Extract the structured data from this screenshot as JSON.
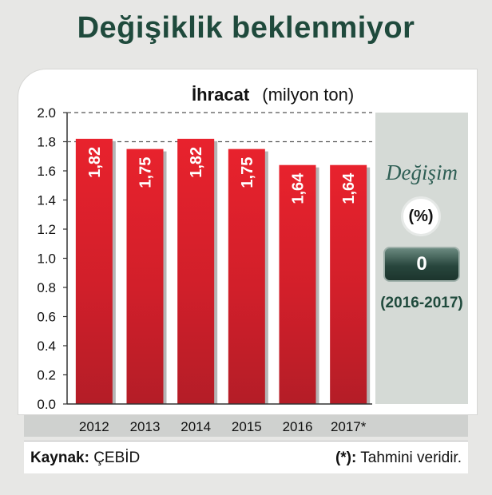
{
  "header": {
    "title": "Değişiklik beklenmiyor"
  },
  "chart_data": {
    "type": "bar",
    "title": "İhracat",
    "unit": "(milyon ton)",
    "categories": [
      "2012",
      "2013",
      "2014",
      "2015",
      "2016",
      "2017*"
    ],
    "values": [
      1.82,
      1.75,
      1.82,
      1.75,
      1.64,
      1.64
    ],
    "value_labels": [
      "1,82",
      "1,75",
      "1,82",
      "1,75",
      "1,64",
      "1,64"
    ],
    "ylim": [
      0,
      2.0
    ],
    "yticks": [
      "0.0",
      "0.2",
      "0.4",
      "0.6",
      "0.8",
      "1.0",
      "1.2",
      "1.4",
      "1.6",
      "1.8",
      "2.0"
    ],
    "grid": "dashed at 1.8 and 2.0",
    "bar_color": "#d7202b"
  },
  "side_panel": {
    "label": "Değişim",
    "unit": "(%)",
    "value": "0",
    "period": "(2016-2017)"
  },
  "footer": {
    "source_label": "Kaynak:",
    "source_value": "ÇEBİD",
    "note_label": "(*):",
    "note_text": "Tahmini veridir."
  }
}
